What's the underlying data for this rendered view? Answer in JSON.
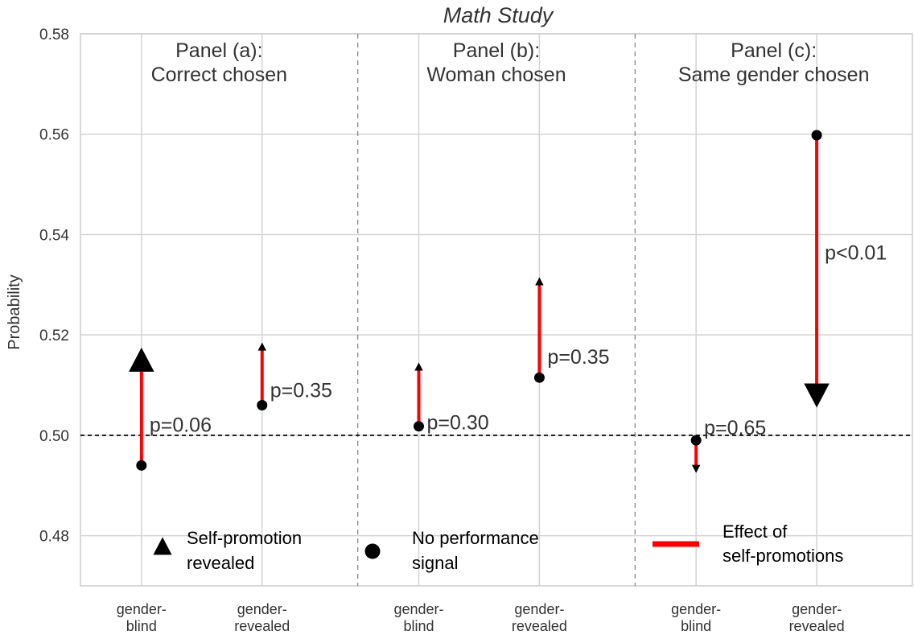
{
  "chart_data": {
    "type": "scatter",
    "title": "Math Study",
    "ylabel": "Probability",
    "xlabel": "",
    "ylim": [
      0.47,
      0.58
    ],
    "yticks": [
      "0.48",
      "0.50",
      "0.52",
      "0.54",
      "0.56",
      "0.58"
    ],
    "reference_line": 0.5,
    "grid": true,
    "colors": {
      "effect": "#ff0000",
      "marker": "#000000",
      "reference": "#000000",
      "grid": "#d3d3d3"
    },
    "panels": [
      {
        "title": [
          "Panel (a):",
          "Correct chosen"
        ],
        "points": [
          {
            "category": [
              "gender-",
              "blind"
            ],
            "no_signal": 0.494,
            "self_promotion": 0.5145,
            "p_label": "p=0.06"
          },
          {
            "category": [
              "gender-",
              "revealed"
            ],
            "no_signal": 0.506,
            "self_promotion": 0.5175,
            "p_label": "p=0.35"
          }
        ]
      },
      {
        "title": [
          "Panel (b):",
          "Woman chosen"
        ],
        "points": [
          {
            "category": [
              "gender-",
              "blind"
            ],
            "no_signal": 0.5018,
            "self_promotion": 0.5135,
            "p_label": "p=0.30"
          },
          {
            "category": [
              "gender-",
              "revealed"
            ],
            "no_signal": 0.5115,
            "self_promotion": 0.5305,
            "p_label": "p=0.35"
          }
        ]
      },
      {
        "title": [
          "Panel (c):",
          "Same gender chosen"
        ],
        "points": [
          {
            "category": [
              "gender-",
              "blind"
            ],
            "no_signal": 0.499,
            "self_promotion": 0.4935,
            "p_label": "p=0.65"
          },
          {
            "category": [
              "gender-",
              "revealed"
            ],
            "no_signal": 0.5598,
            "self_promotion": 0.5085,
            "p_label": "p<0.01"
          }
        ]
      }
    ],
    "legend": [
      {
        "marker": "triangle",
        "label": [
          "Self-promotion",
          "revealed"
        ]
      },
      {
        "marker": "circle",
        "label": [
          "No performance",
          "signal"
        ]
      },
      {
        "marker": "line",
        "label": [
          "Effect of",
          "self-promotions"
        ]
      }
    ]
  }
}
